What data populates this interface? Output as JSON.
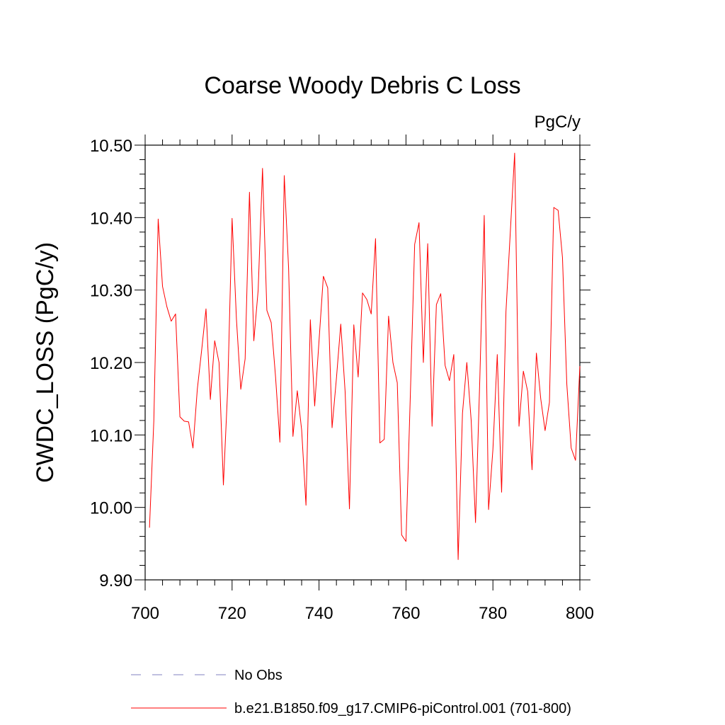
{
  "chart_data": {
    "type": "line",
    "title": "Coarse Woody Debris C Loss",
    "units": "PgC/y",
    "xlabel": "",
    "ylabel": "CWDC_LOSS  (PgC/y)",
    "xlim": [
      700,
      800
    ],
    "ylim": [
      9.9,
      10.5
    ],
    "x_ticks": [
      700,
      720,
      740,
      760,
      780,
      800
    ],
    "x_tick_labels": [
      "700",
      "720",
      "740",
      "760",
      "780",
      "800"
    ],
    "y_ticks": [
      9.9,
      10.0,
      10.1,
      10.2,
      10.3,
      10.4,
      10.5
    ],
    "y_tick_labels": [
      "9.90",
      "10.00",
      "10.10",
      "10.20",
      "10.30",
      "10.40",
      "10.50"
    ],
    "series": [
      {
        "name": "b.e21.B1850.f09_g17.CMIP6-piControl.001 (701-800)",
        "color": "#ff0000",
        "x": [
          701,
          702,
          703,
          704,
          705,
          706,
          707,
          708,
          709,
          710,
          711,
          712,
          713,
          714,
          715,
          716,
          717,
          718,
          719,
          720,
          721,
          722,
          723,
          724,
          725,
          726,
          727,
          728,
          729,
          730,
          731,
          732,
          733,
          734,
          735,
          736,
          737,
          738,
          739,
          740,
          741,
          742,
          743,
          744,
          745,
          746,
          747,
          748,
          749,
          750,
          751,
          752,
          753,
          754,
          755,
          756,
          757,
          758,
          759,
          760,
          761,
          762,
          763,
          764,
          765,
          766,
          767,
          768,
          769,
          770,
          771,
          772,
          773,
          774,
          775,
          776,
          777,
          778,
          779,
          780,
          781,
          782,
          783,
          784,
          785,
          786,
          787,
          788,
          789,
          790,
          791,
          792,
          793,
          794,
          795,
          796,
          797,
          798,
          799,
          800
        ],
        "values": [
          9.972,
          10.12,
          10.398,
          10.305,
          10.277,
          10.257,
          10.267,
          10.125,
          10.119,
          10.118,
          10.082,
          10.163,
          10.217,
          10.274,
          10.149,
          10.23,
          10.2,
          10.031,
          10.165,
          10.399,
          10.26,
          10.163,
          10.205,
          10.435,
          10.23,
          10.3,
          10.468,
          10.272,
          10.255,
          10.18,
          10.09,
          10.458,
          10.33,
          10.098,
          10.161,
          10.107,
          10.003,
          10.259,
          10.14,
          10.23,
          10.319,
          10.303,
          10.11,
          10.178,
          10.253,
          10.16,
          9.998,
          10.252,
          10.18,
          10.296,
          10.287,
          10.267,
          10.371,
          10.089,
          10.094,
          10.264,
          10.2,
          10.172,
          9.962,
          9.953,
          10.154,
          10.363,
          10.393,
          10.2,
          10.364,
          10.112,
          10.28,
          10.295,
          10.196,
          10.175,
          10.211,
          9.928,
          10.13,
          10.2,
          10.12,
          9.979,
          10.18,
          10.403,
          9.997,
          10.08,
          10.211,
          10.021,
          10.27,
          10.38,
          10.489,
          10.112,
          10.188,
          10.16,
          10.052,
          10.213,
          10.15,
          10.106,
          10.145,
          10.414,
          10.41,
          10.345,
          10.17,
          10.082,
          10.065,
          10.195
        ]
      }
    ],
    "legend": [
      {
        "label": "No Obs",
        "color": "#8080c0",
        "style": "dashed"
      },
      {
        "label": "b.e21.B1850.f09_g17.CMIP6-piControl.001 (701-800)",
        "color": "#ff0000",
        "style": "solid"
      }
    ]
  }
}
